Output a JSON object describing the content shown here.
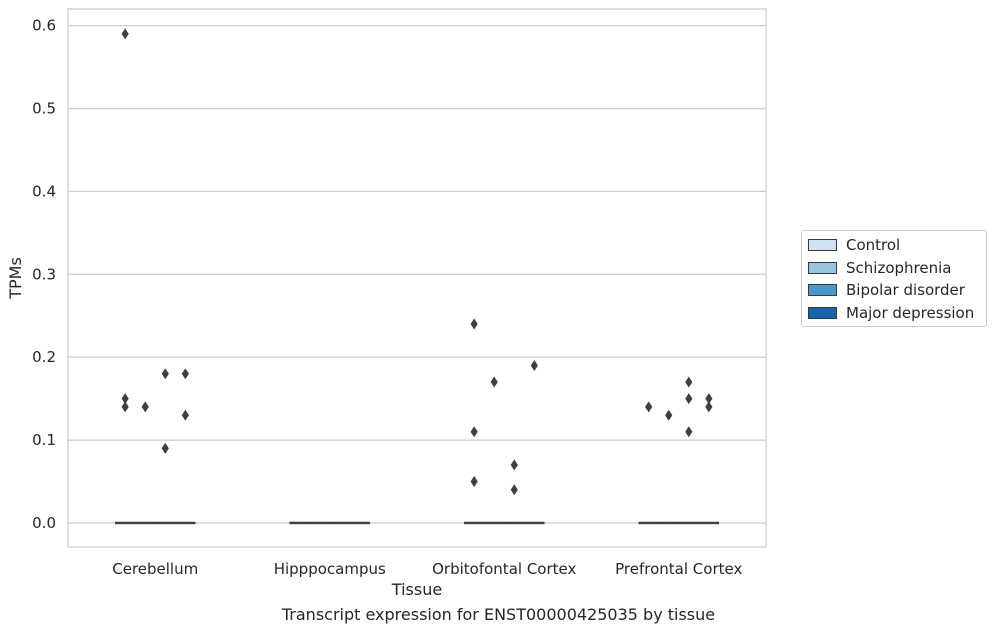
{
  "caption": "Transcript expression for ENST00000425035 by tissue",
  "chart_data": {
    "type": "boxplot",
    "xlabel": "Tissue",
    "ylabel": "TPMs",
    "ylim": [
      -0.029,
      0.62
    ],
    "yticks": [
      "0.0",
      "0.1",
      "0.2",
      "0.3",
      "0.4",
      "0.5",
      "0.6"
    ],
    "ytick_values": [
      0.0,
      0.1,
      0.2,
      0.3,
      0.4,
      0.5,
      0.6
    ],
    "grid": true,
    "categories": [
      "Cerebellum",
      "Hipppocampus",
      "Orbitofontal Cortex",
      "Prefrontal Cortex"
    ],
    "series": [
      {
        "name": "Control",
        "color": "#d0e1f2"
      },
      {
        "name": "Schizophrenia",
        "color": "#94c4df"
      },
      {
        "name": "Bipolar disorder",
        "color": "#4a98c9"
      },
      {
        "name": "Major depression",
        "color": "#1764ab"
      }
    ],
    "boxes": {
      "median": 0.0,
      "q1": 0.0,
      "q3": 0.0
    },
    "outliers": [
      {
        "category": "Cerebellum",
        "series": "Control",
        "values": [
          0.59,
          0.15,
          0.14
        ]
      },
      {
        "category": "Cerebellum",
        "series": "Schizophrenia",
        "values": [
          0.14
        ]
      },
      {
        "category": "Cerebellum",
        "series": "Bipolar disorder",
        "values": [
          0.18,
          0.09
        ]
      },
      {
        "category": "Cerebellum",
        "series": "Major depression",
        "values": [
          0.18,
          0.13
        ]
      },
      {
        "category": "Orbitofontal Cortex",
        "series": "Control",
        "values": [
          0.24,
          0.11,
          0.05
        ]
      },
      {
        "category": "Orbitofontal Cortex",
        "series": "Schizophrenia",
        "values": [
          0.17
        ]
      },
      {
        "category": "Orbitofontal Cortex",
        "series": "Bipolar disorder",
        "values": [
          0.07,
          0.04
        ]
      },
      {
        "category": "Orbitofontal Cortex",
        "series": "Major depression",
        "values": [
          0.19
        ]
      },
      {
        "category": "Prefrontal Cortex",
        "series": "Control",
        "values": [
          0.14
        ]
      },
      {
        "category": "Prefrontal Cortex",
        "series": "Schizophrenia",
        "values": [
          0.13
        ]
      },
      {
        "category": "Prefrontal Cortex",
        "series": "Bipolar disorder",
        "values": [
          0.17,
          0.15,
          0.11
        ]
      },
      {
        "category": "Prefrontal Cortex",
        "series": "Major depression",
        "values": [
          0.15,
          0.14
        ]
      }
    ],
    "legend": "right"
  }
}
